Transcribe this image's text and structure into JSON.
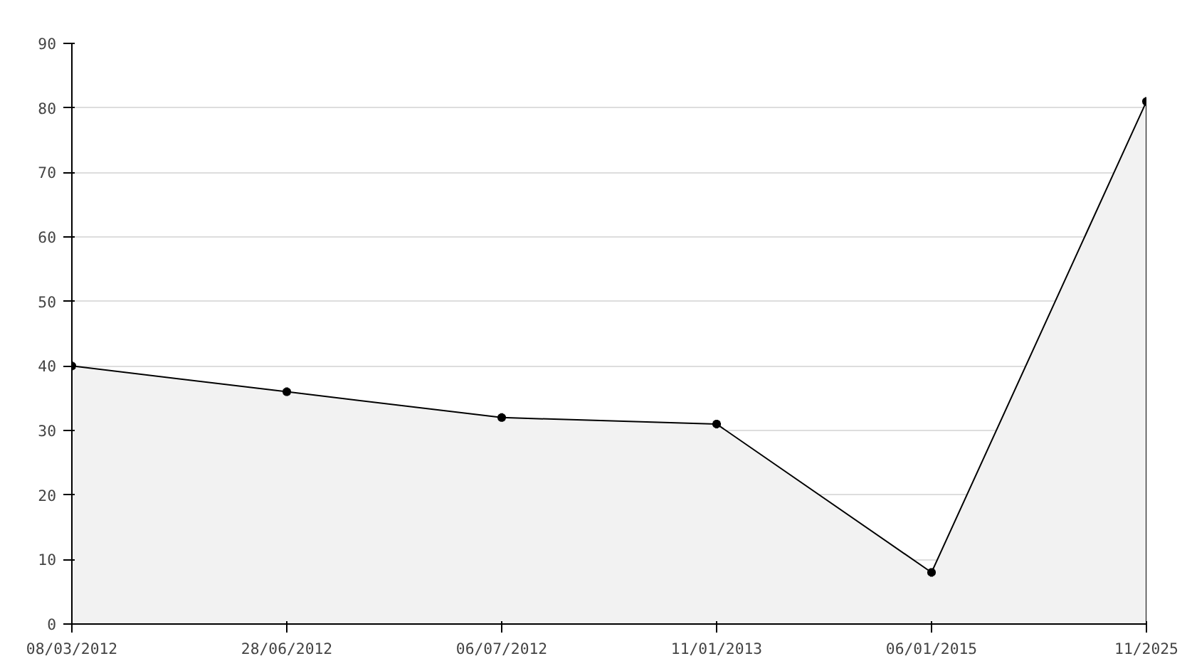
{
  "chart_data": {
    "type": "area",
    "categories": [
      "08/03/2012",
      "28/06/2012",
      "06/07/2012",
      "11/01/2013",
      "06/01/2015",
      "11/2025"
    ],
    "series": [
      {
        "color": "#000000",
        "values": [
          40,
          36,
          32,
          31,
          8,
          81
        ]
      }
    ],
    "ylim": [
      0,
      90
    ],
    "yticks": [
      0,
      10,
      20,
      30,
      40,
      50,
      60,
      70,
      80,
      90
    ],
    "grid": "y",
    "marker": "cross",
    "line_style": "solid"
  }
}
